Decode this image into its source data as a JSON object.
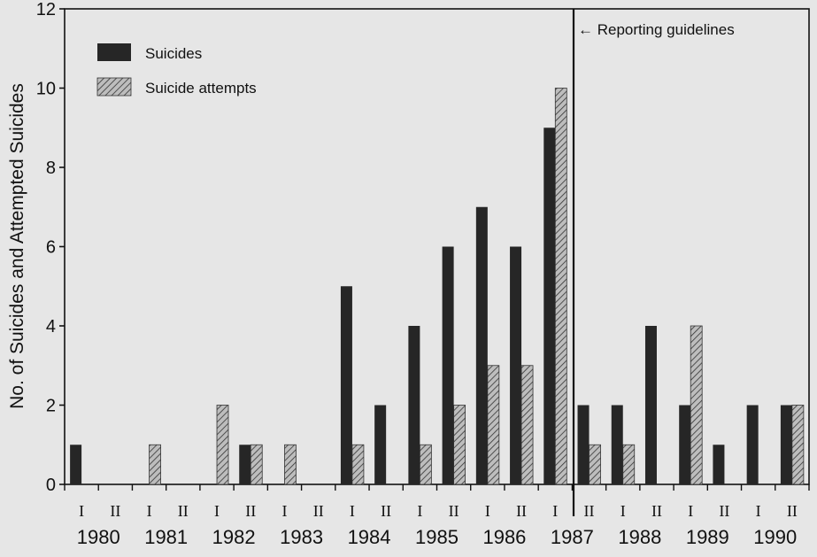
{
  "chart_data": {
    "type": "bar",
    "categories": [
      "1980 I",
      "1980 II",
      "1981 I",
      "1981 II",
      "1982 I",
      "1982 II",
      "1983 I",
      "1983 II",
      "1984 I",
      "1984 II",
      "1985 I",
      "1985 II",
      "1986 I",
      "1986 II",
      "1987 I",
      "1987 II",
      "1988 I",
      "1988 II",
      "1989 I",
      "1989 II",
      "1990 I",
      "1990 II"
    ],
    "half_labels": [
      "I",
      "II",
      "I",
      "II",
      "I",
      "II",
      "I",
      "II",
      "I",
      "II",
      "I",
      "II",
      "I",
      "II",
      "I",
      "II",
      "I",
      "II",
      "I",
      "II",
      "I",
      "II"
    ],
    "years": [
      "1980",
      "1981",
      "1982",
      "1983",
      "1984",
      "1985",
      "1986",
      "1987",
      "1988",
      "1989",
      "1990"
    ],
    "series": [
      {
        "name": "Suicides",
        "fill": "solid",
        "values": [
          1,
          0,
          0,
          0,
          0,
          1,
          0,
          0,
          5,
          2,
          4,
          6,
          7,
          6,
          9,
          2,
          2,
          4,
          2,
          1,
          2,
          2
        ]
      },
      {
        "name": "Suicide attempts",
        "fill": "hatched",
        "values": [
          0,
          0,
          1,
          0,
          2,
          1,
          1,
          0,
          1,
          0,
          1,
          2,
          3,
          3,
          10,
          1,
          1,
          0,
          4,
          0,
          0,
          2
        ]
      }
    ],
    "title": "",
    "xlabel": "",
    "ylabel": "No. of Suicides and Attempted Suicides",
    "ylim": [
      0,
      12
    ],
    "yticks": [
      0,
      2,
      4,
      6,
      8,
      10,
      12
    ],
    "grid": false,
    "legend_position": "top-left",
    "annotation": {
      "text": "← Reporting guidelines",
      "marker": "vertical line between 1987 I and 1987 II"
    },
    "colors": {
      "background": "#e6e6e6",
      "suicides": "#262626",
      "attempts_base": "#bdbdbd",
      "attempts_hatch": "#333333",
      "axis": "#111111"
    }
  }
}
